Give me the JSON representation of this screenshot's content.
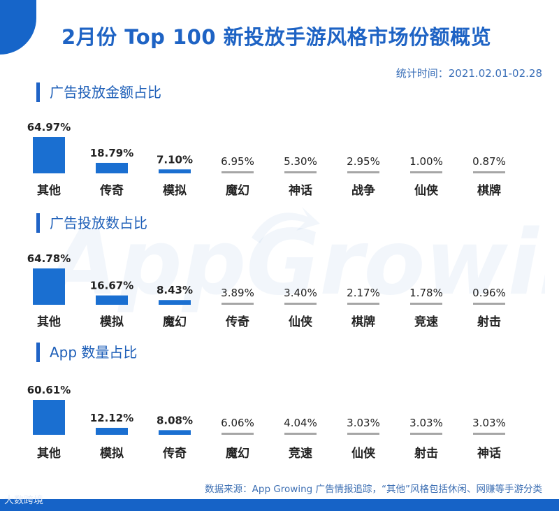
{
  "title": "2月份 Top 100 新投放手游风格市场份额概览",
  "period": "统计时间：2021.02.01-02.28",
  "watermark_text": "AppGrowing",
  "footer_note": "数据来源：App Growing 广告情报追踪，“其他”风格包括休闲、网赚等手游分类",
  "corner_watermark": "大数跨境",
  "colors": {
    "accent": "#1665c9",
    "bar_blue": "#1a6fd1",
    "bar_gray": "#a6a6a6",
    "title": "#1e63c4"
  },
  "chart_data": [
    {
      "type": "bar",
      "title": "广告投放金额占比",
      "categories": [
        "其他",
        "传奇",
        "模拟",
        "魔幻",
        "神话",
        "战争",
        "仙侠",
        "棋牌"
      ],
      "values": [
        64.97,
        18.79,
        7.1,
        6.95,
        5.3,
        2.95,
        1.0,
        0.87
      ],
      "labels": [
        "64.97%",
        "18.79%",
        "7.10%",
        "6.95%",
        "5.30%",
        "2.95%",
        "1.00%",
        "0.87%"
      ],
      "highlight_count": 3,
      "ylim": [
        0,
        100
      ]
    },
    {
      "type": "bar",
      "title": "广告投放数占比",
      "categories": [
        "其他",
        "模拟",
        "魔幻",
        "传奇",
        "仙侠",
        "棋牌",
        "竞速",
        "射击"
      ],
      "values": [
        64.78,
        16.67,
        8.43,
        3.89,
        3.4,
        2.17,
        1.78,
        0.96
      ],
      "labels": [
        "64.78%",
        "16.67%",
        "8.43%",
        "3.89%",
        "3.40%",
        "2.17%",
        "1.78%",
        "0.96%"
      ],
      "highlight_count": 3,
      "ylim": [
        0,
        100
      ]
    },
    {
      "type": "bar",
      "title": "App 数量占比",
      "categories": [
        "其他",
        "模拟",
        "传奇",
        "魔幻",
        "竞速",
        "仙侠",
        "射击",
        "神话"
      ],
      "values": [
        60.61,
        12.12,
        8.08,
        6.06,
        4.04,
        3.03,
        3.03,
        3.03
      ],
      "labels": [
        "60.61%",
        "12.12%",
        "8.08%",
        "6.06%",
        "4.04%",
        "3.03%",
        "3.03%",
        "3.03%"
      ],
      "highlight_count": 3,
      "ylim": [
        0,
        100
      ]
    }
  ]
}
